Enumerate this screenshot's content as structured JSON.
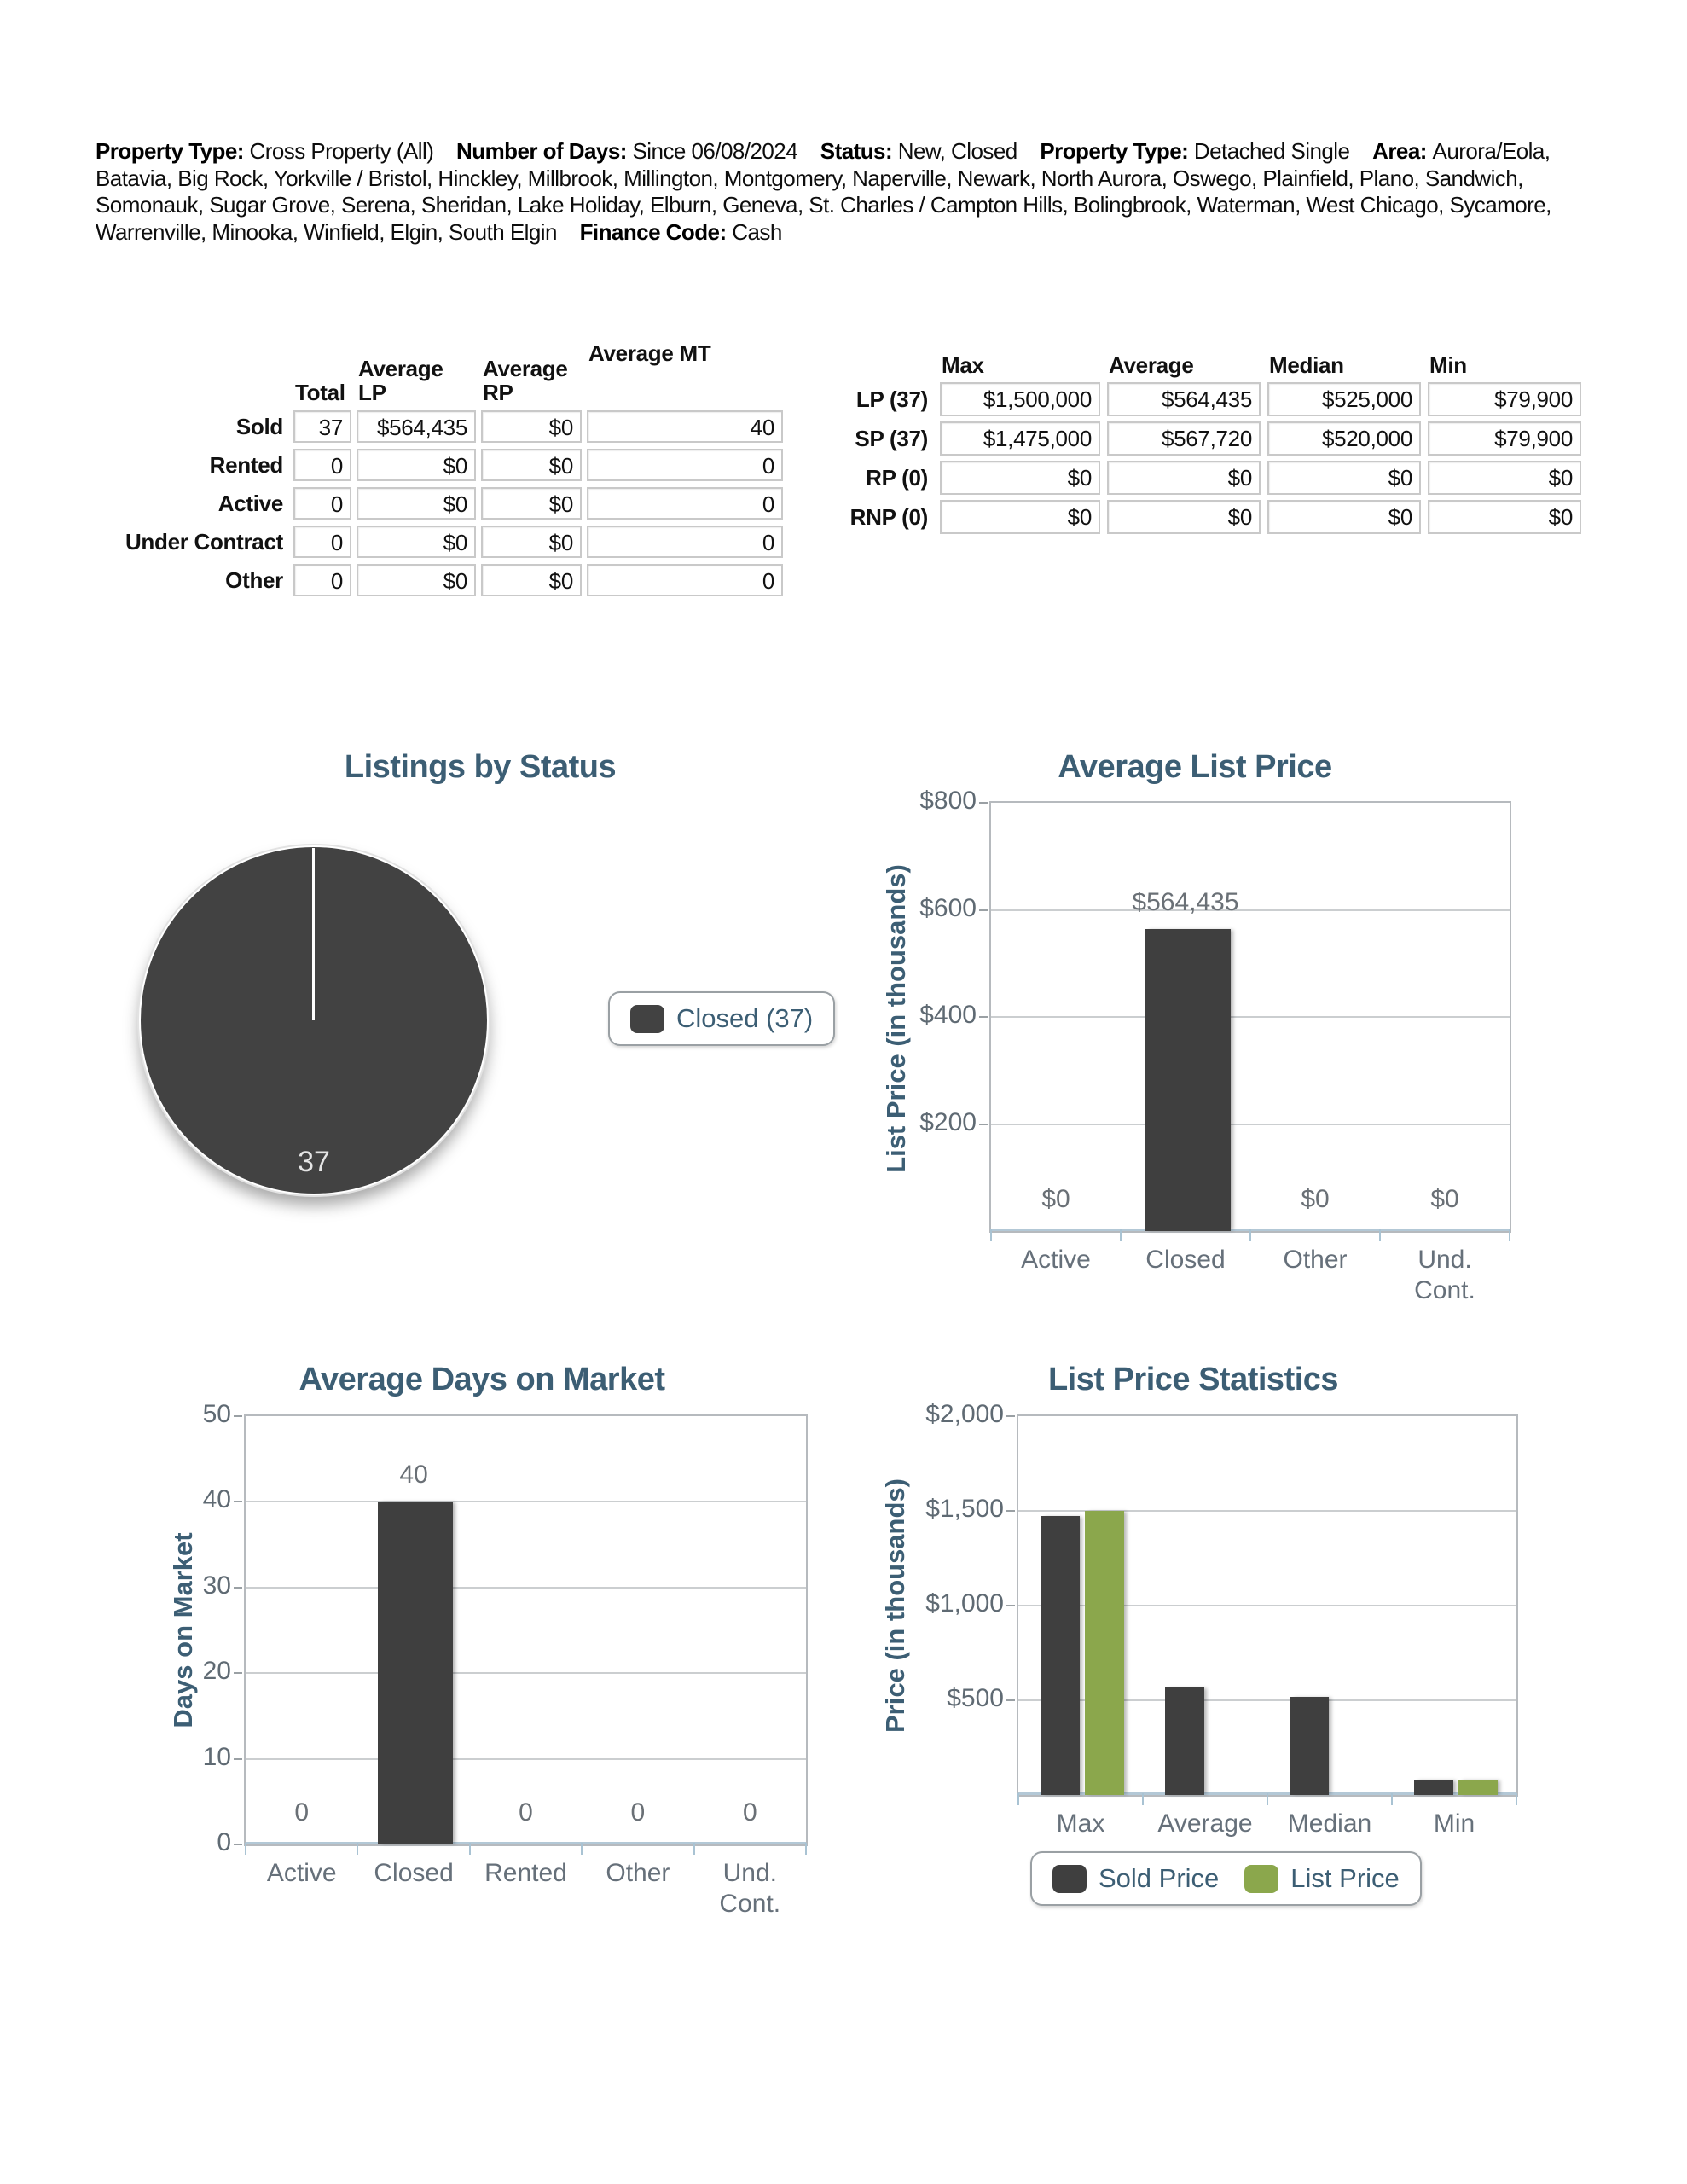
{
  "header": {
    "segments": [
      {
        "label": "Property Type:",
        "value": "Cross Property (All)"
      },
      {
        "label": "Number of Days:",
        "value": "Since 06/08/2024"
      },
      {
        "label": "Status:",
        "value": "New, Closed"
      },
      {
        "label": "Property Type:",
        "value": "Detached Single"
      },
      {
        "label": "Area:",
        "value": "Aurora/Eola, Batavia, Big Rock, Yorkville / Bristol, Hinckley, Millbrook, Millington, Montgomery, Naperville, Newark, North Aurora, Oswego, Plainfield, Plano, Sandwich, Somonauk, Sugar Grove, Serena, Sheridan, Lake Holiday, Elburn, Geneva, St. Charles / Campton Hills, Bolingbrook, Waterman, West Chicago, Sycamore, Warrenville, Minooka, Winfield, Elgin, South Elgin"
      },
      {
        "label": "Finance Code:",
        "value": "Cash"
      }
    ]
  },
  "summary_table": {
    "columns": [
      "Total",
      "Average\nLP",
      "Average\nRP",
      "Average MT"
    ],
    "rows": [
      {
        "label": "Sold",
        "values": [
          "37",
          "$564,435",
          "$0",
          "40"
        ]
      },
      {
        "label": "Rented",
        "values": [
          "0",
          "$0",
          "$0",
          "0"
        ]
      },
      {
        "label": "Active",
        "values": [
          "0",
          "$0",
          "$0",
          "0"
        ]
      },
      {
        "label": "Under Contract",
        "values": [
          "0",
          "$0",
          "$0",
          "0"
        ]
      },
      {
        "label": "Other",
        "values": [
          "0",
          "$0",
          "$0",
          "0"
        ]
      }
    ]
  },
  "price_table": {
    "columns": [
      "Max",
      "Average",
      "Median",
      "Min"
    ],
    "rows": [
      {
        "label": "LP (37)",
        "values": [
          "$1,500,000",
          "$564,435",
          "$525,000",
          "$79,900"
        ]
      },
      {
        "label": "SP (37)",
        "values": [
          "$1,475,000",
          "$567,720",
          "$520,000",
          "$79,900"
        ]
      },
      {
        "label": "RP (0)",
        "values": [
          "$0",
          "$0",
          "$0",
          "$0"
        ]
      },
      {
        "label": "RNP (0)",
        "values": [
          "$0",
          "$0",
          "$0",
          "$0"
        ]
      }
    ]
  },
  "chart_data": [
    {
      "type": "pie",
      "title": "Listings by Status",
      "slices": [
        {
          "label": "Closed",
          "value": 37,
          "display": "37",
          "color": "#424242"
        }
      ],
      "legend": [
        {
          "label": "Closed (37)",
          "color": "#424242"
        }
      ],
      "legend_position": "right"
    },
    {
      "type": "bar",
      "title": "Average List Price",
      "ylabel": "List Price (in thousands)",
      "ylim": [
        0,
        800
      ],
      "yticks": [
        {
          "v": 800,
          "label": "$800"
        },
        {
          "v": 600,
          "label": "$600"
        },
        {
          "v": 400,
          "label": "$400"
        },
        {
          "v": 200,
          "label": "$200"
        }
      ],
      "categories": [
        "Active",
        "Closed",
        "Other",
        "Und.\nCont."
      ],
      "values": [
        0,
        564.435,
        0,
        0
      ],
      "value_labels": [
        "$0",
        "$564,435",
        "$0",
        "$0"
      ],
      "bar_color": "#3f3f3f",
      "grid": true
    },
    {
      "type": "bar",
      "title": "Average Days on Market",
      "ylabel": "Days on Market",
      "ylim": [
        0,
        50
      ],
      "yticks": [
        {
          "v": 50,
          "label": "50"
        },
        {
          "v": 40,
          "label": "40"
        },
        {
          "v": 30,
          "label": "30"
        },
        {
          "v": 20,
          "label": "20"
        },
        {
          "v": 10,
          "label": "10"
        },
        {
          "v": 0,
          "label": "0"
        }
      ],
      "categories": [
        "Active",
        "Closed",
        "Rented",
        "Other",
        "Und.\nCont."
      ],
      "values": [
        0,
        40,
        0,
        0,
        0
      ],
      "value_labels": [
        "0",
        "40",
        "0",
        "0",
        "0"
      ],
      "bar_color": "#3f3f3f",
      "grid": true
    },
    {
      "type": "grouped_bar",
      "title": "List Price Statistics",
      "ylabel": "Price (in thousands)",
      "ylim": [
        0,
        2000
      ],
      "yticks": [
        {
          "v": 2000,
          "label": "$2,000"
        },
        {
          "v": 1500,
          "label": "$1,500"
        },
        {
          "v": 1000,
          "label": "$1,000"
        },
        {
          "v": 500,
          "label": "$500"
        }
      ],
      "categories": [
        "Max",
        "Average",
        "Median",
        "Min"
      ],
      "series": [
        {
          "name": "Sold Price",
          "color": "#3f3f3f",
          "values": [
            1475,
            567.72,
            520,
            79.9
          ]
        },
        {
          "name": "List Price",
          "color": "#8ba74c",
          "values": [
            1500,
            null,
            null,
            79.9
          ]
        }
      ],
      "legend": [
        {
          "label": "Sold Price",
          "color": "#3f3f3f"
        },
        {
          "label": "List Price",
          "color": "#8ba74c"
        }
      ],
      "legend_position": "bottom",
      "grid": true
    }
  ],
  "colors": {
    "title_text": "#3c5e74",
    "tick_text": "#5f6a73",
    "bar_dark": "#3f3f3f",
    "bar_green": "#8ba74c",
    "axis_blue": "#b3c8d6",
    "gridline": "#cbced0"
  }
}
